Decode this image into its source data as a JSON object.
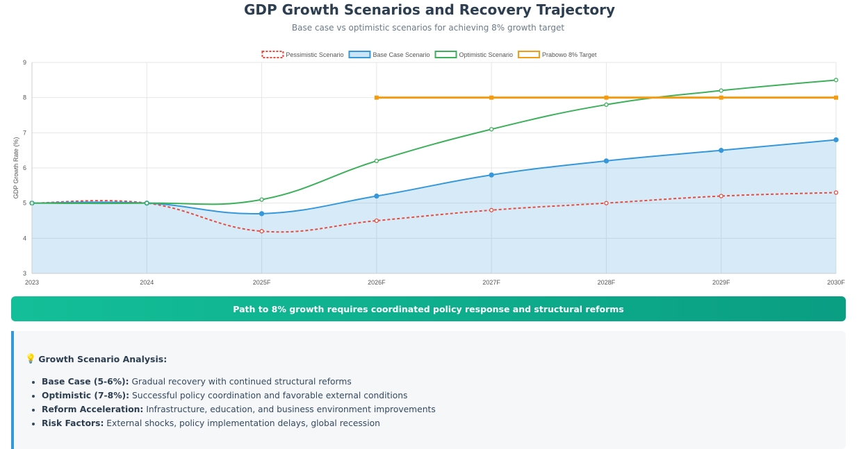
{
  "page": {
    "title": "GDP Growth Scenarios and Recovery Trajectory",
    "subtitle": "Base case vs optimistic scenarios for achieving 8% growth target",
    "banner": "Path to 8% growth requires coordinated policy response and structural reforms"
  },
  "analysis": {
    "heading": "Growth Scenario Analysis:",
    "items": [
      {
        "label": "Base Case (5-6%):",
        "text": "Gradual recovery with continued structural reforms"
      },
      {
        "label": "Optimistic (7-8%):",
        "text": "Successful policy coordination and favorable external conditions"
      },
      {
        "label": "Reform Acceleration:",
        "text": "Infrastructure, education, and business environment improvements"
      },
      {
        "label": "Risk Factors:",
        "text": "External shocks, policy implementation delays, global recession"
      }
    ]
  },
  "chart_data": {
    "type": "line",
    "x": [
      "2023",
      "2024",
      "2025F",
      "2026F",
      "2027F",
      "2028F",
      "2029F",
      "2030F"
    ],
    "ylabel": "GDP Growth Rate (%)",
    "ylim": [
      3,
      9
    ],
    "yticks": [
      3,
      4,
      5,
      6,
      7,
      8,
      9
    ],
    "grid": true,
    "legend": "top",
    "series": [
      {
        "name": "Pessimistic Scenario",
        "values": [
          5.0,
          5.0,
          4.2,
          4.5,
          4.8,
          5.0,
          5.2,
          5.3
        ],
        "color": "#e74c3c",
        "dashed": true,
        "fill": false
      },
      {
        "name": "Base Case Scenario",
        "values": [
          5.0,
          5.0,
          4.7,
          5.2,
          5.8,
          6.2,
          6.5,
          6.8
        ],
        "color": "#3498db",
        "dashed": false,
        "fill": true
      },
      {
        "name": "Optimistic Scenario",
        "values": [
          5.0,
          5.0,
          5.1,
          6.2,
          7.1,
          7.8,
          8.2,
          8.5
        ],
        "color": "#3cb05a",
        "dashed": false,
        "fill": false
      },
      {
        "name": "Prabowo 8% Target",
        "values": [
          null,
          null,
          null,
          8.0,
          8.0,
          8.0,
          8.0,
          8.0
        ],
        "color": "#f39c12",
        "dashed": false,
        "fill": false,
        "square_markers": true
      }
    ]
  }
}
